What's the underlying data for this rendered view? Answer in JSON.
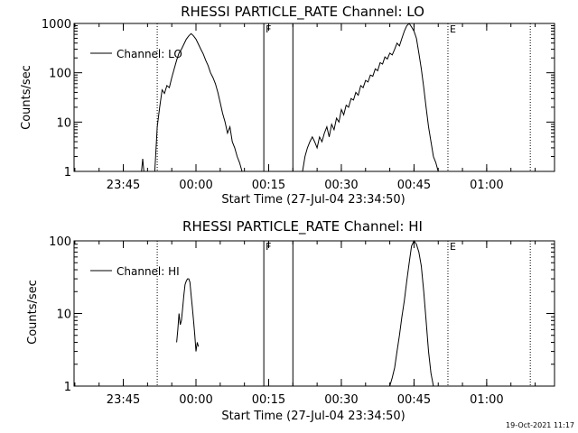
{
  "footer": {
    "timestamp": "19-Oct-2021 11:17"
  },
  "chart_data": [
    {
      "type": "line",
      "title": "RHESSI PARTICLE_RATE Channel: LO",
      "xlabel": "Start Time (27-Jul-04 23:34:50)",
      "ylabel": "Counts/sec",
      "yscale": "log",
      "xlim": [
        "23:34:50",
        "01:14:00"
      ],
      "ylim": [
        1,
        1000
      ],
      "x_ticks": [
        "23:45",
        "00:00",
        "00:15",
        "00:30",
        "00:45",
        "01:00"
      ],
      "y_ticks": [
        "1",
        "10",
        "100",
        "1000"
      ],
      "legend": {
        "placement": "top-left",
        "label": "Channel: LO"
      },
      "markers": [
        {
          "time": "23:52",
          "style": "dotted",
          "label": ""
        },
        {
          "time": "00:14",
          "style": "solid",
          "label": "F"
        },
        {
          "time": "00:20",
          "style": "solid",
          "label": ""
        },
        {
          "time": "00:52",
          "style": "dotted",
          "label": "E"
        },
        {
          "time": "01:09",
          "style": "dotted",
          "label": ""
        }
      ],
      "series": [
        {
          "name": "Channel: LO",
          "segments": [
            {
              "times": [
                "23:48:45",
                "23:49:00",
                "23:49:15"
              ],
              "values": [
                1.0,
                1.8,
                1.0
              ]
            },
            {
              "times": [
                "23:51:30",
                "23:52:00",
                "23:52:30",
                "23:53:00",
                "23:53:30",
                "23:54:00",
                "23:54:30",
                "23:55:00",
                "23:55:30",
                "23:56:00",
                "23:56:30",
                "23:57:00",
                "23:57:30",
                "23:58:00",
                "23:58:30",
                "23:59:00",
                "23:59:30",
                "00:00:00",
                "00:00:30",
                "00:01:00",
                "00:01:30",
                "00:02:00",
                "00:02:30",
                "00:03:00",
                "00:03:30",
                "00:04:00",
                "00:04:30",
                "00:05:00",
                "00:05:30",
                "00:06:00",
                "00:06:30",
                "00:07:00",
                "00:07:30",
                "00:08:00",
                "00:08:30",
                "00:09:00",
                "00:09:30"
              ],
              "values": [
                1,
                8,
                20,
                45,
                38,
                55,
                50,
                80,
                120,
                180,
                250,
                300,
                380,
                480,
                560,
                620,
                560,
                480,
                380,
                300,
                240,
                180,
                140,
                100,
                80,
                60,
                40,
                25,
                15,
                10,
                6,
                8,
                4,
                3,
                2,
                1.5,
                1
              ]
            },
            {
              "times": [
                "00:22:00",
                "00:22:30",
                "00:23:00",
                "00:23:30",
                "00:24:00",
                "00:24:30",
                "00:25:00",
                "00:25:30",
                "00:26:00",
                "00:26:30",
                "00:27:00",
                "00:27:30",
                "00:28:00",
                "00:28:30",
                "00:29:00",
                "00:29:30",
                "00:30:00",
                "00:30:30",
                "00:31:00",
                "00:31:30",
                "00:32:00",
                "00:32:30",
                "00:33:00",
                "00:33:30",
                "00:34:00",
                "00:34:30",
                "00:35:00",
                "00:35:30",
                "00:36:00",
                "00:36:30",
                "00:37:00",
                "00:37:30",
                "00:38:00",
                "00:38:30",
                "00:39:00",
                "00:39:30",
                "00:40:00",
                "00:40:30",
                "00:41:00",
                "00:41:30",
                "00:42:00",
                "00:42:30",
                "00:43:00",
                "00:43:30",
                "00:44:00",
                "00:44:30",
                "00:45:00",
                "00:45:30",
                "00:46:00",
                "00:46:30",
                "00:47:00",
                "00:47:30",
                "00:48:00",
                "00:48:30",
                "00:49:00",
                "00:49:30",
                "00:50:00",
                "00:50:30"
              ],
              "values": [
                1,
                2,
                3,
                4,
                5,
                4,
                3,
                5,
                4,
                6,
                8,
                5,
                9,
                7,
                12,
                10,
                18,
                14,
                22,
                20,
                30,
                28,
                40,
                35,
                55,
                50,
                70,
                65,
                90,
                85,
                120,
                110,
                160,
                150,
                210,
                190,
                250,
                230,
                300,
                400,
                350,
                500,
                700,
                900,
                1000,
                850,
                700,
                500,
                250,
                120,
                50,
                20,
                8,
                4,
                2,
                1.5,
                1,
                1
              ]
            }
          ]
        }
      ]
    },
    {
      "type": "line",
      "title": "RHESSI PARTICLE_RATE Channel: HI",
      "xlabel": "Start Time (27-Jul-04 23:34:50)",
      "ylabel": "Counts/sec",
      "yscale": "log",
      "xlim": [
        "23:34:50",
        "01:14:00"
      ],
      "ylim": [
        1,
        100
      ],
      "x_ticks": [
        "23:45",
        "00:00",
        "00:15",
        "00:30",
        "00:45",
        "01:00"
      ],
      "y_ticks": [
        "1",
        "10",
        "100"
      ],
      "legend": {
        "placement": "top-left",
        "label": "Channel: HI"
      },
      "markers": [
        {
          "time": "23:52",
          "style": "dotted",
          "label": ""
        },
        {
          "time": "00:14",
          "style": "solid",
          "label": "F"
        },
        {
          "time": "00:20",
          "style": "solid",
          "label": ""
        },
        {
          "time": "00:52",
          "style": "dotted",
          "label": "E"
        },
        {
          "time": "01:09",
          "style": "dotted",
          "label": ""
        }
      ],
      "series": [
        {
          "name": "Channel: HI",
          "segments": [
            {
              "times": [
                "23:56:00",
                "23:56:15",
                "23:56:30",
                "23:56:45",
                "23:57:00",
                "23:57:15",
                "23:57:30",
                "23:57:45",
                "23:58:00",
                "23:58:15",
                "23:58:30",
                "23:58:45",
                "23:59:00",
                "23:59:15",
                "23:59:30",
                "23:59:45",
                "00:00:00",
                "00:00:15",
                "00:00:30"
              ],
              "values": [
                4,
                6,
                10,
                7,
                8,
                12,
                18,
                25,
                28,
                30,
                30,
                27,
                18,
                12,
                8,
                5,
                3,
                4,
                3.5
              ]
            },
            {
              "times": [
                "00:40:00",
                "00:40:30",
                "00:41:00",
                "00:41:30",
                "00:42:00",
                "00:42:30",
                "00:43:00",
                "00:43:30",
                "00:44:00",
                "00:44:30",
                "00:45:00",
                "00:45:30",
                "00:46:00",
                "00:46:30",
                "00:47:00",
                "00:47:30",
                "00:48:00",
                "00:48:30",
                "00:49:00"
              ],
              "values": [
                1,
                1.3,
                1.8,
                3,
                5,
                9,
                15,
                28,
                50,
                85,
                100,
                90,
                70,
                45,
                20,
                8,
                3,
                1.5,
                1
              ]
            }
          ]
        }
      ]
    }
  ]
}
